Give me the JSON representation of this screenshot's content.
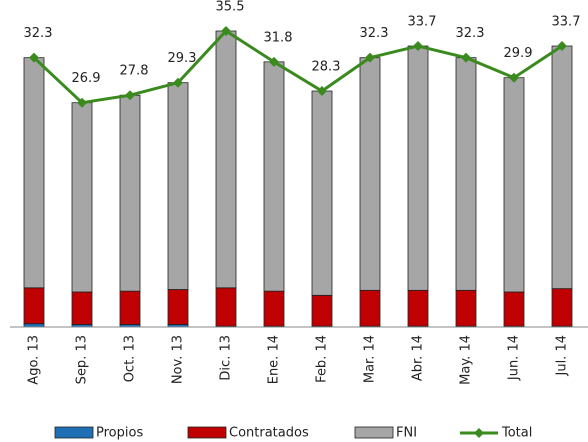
{
  "chart_data": {
    "type": "bar",
    "categories": [
      "Ago. 13",
      "Sep. 13",
      "Oct. 13",
      "Nov. 13",
      "Dic. 13",
      "Ene. 14",
      "Feb. 14",
      "Mar. 14",
      "Abr. 14",
      "May. 14",
      "Jun. 14",
      "Jul. 14"
    ],
    "stacked": true,
    "series": [
      {
        "name": "Propios",
        "color": "#1f6fb5",
        "values": [
          0.4,
          0.3,
          0.3,
          0.3,
          0.1,
          0.1,
          0.1,
          0.1,
          0.1,
          0.1,
          0.1,
          0.1
        ]
      },
      {
        "name": "Contratados",
        "color": "#c00000",
        "values": [
          4.3,
          3.9,
          4.0,
          4.2,
          4.6,
          4.2,
          3.7,
          4.3,
          4.3,
          4.3,
          4.1,
          4.5
        ]
      },
      {
        "name": "FNI",
        "color": "#a6a6a6",
        "values": [
          27.6,
          22.7,
          23.5,
          24.8,
          30.8,
          27.5,
          24.5,
          27.9,
          29.3,
          27.9,
          25.7,
          29.1
        ]
      },
      {
        "name": "Total",
        "color": "#3a8a1e",
        "type": "line",
        "values": [
          32.3,
          26.9,
          27.8,
          29.3,
          35.5,
          31.8,
          28.3,
          32.3,
          33.7,
          32.3,
          29.9,
          33.7
        ]
      }
    ]
  }
}
